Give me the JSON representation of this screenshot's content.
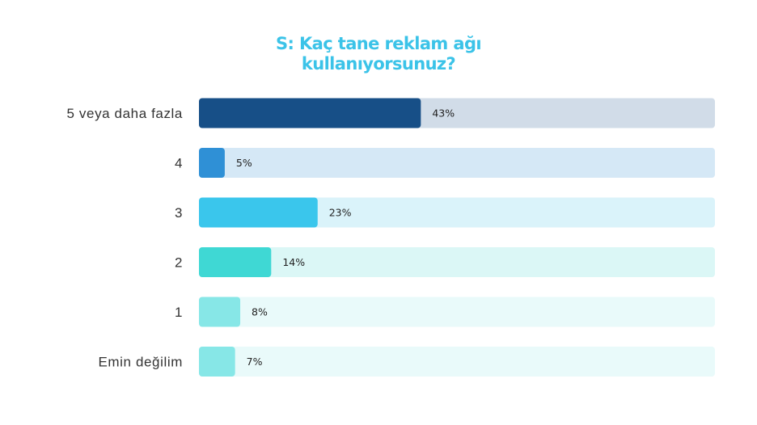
{
  "title_lines": [
    "S: Kaç tane reklam ağı",
    "kullanıyorsunuz?"
  ],
  "title_color": "#3bc3e8",
  "chart_data": {
    "type": "bar",
    "orientation": "horizontal",
    "categories": [
      "5 veya daha fazla",
      "4",
      "3",
      "2",
      "1",
      "Emin değilim"
    ],
    "values": [
      43,
      5,
      23,
      14,
      8,
      7
    ],
    "value_labels": [
      "43%",
      "5%",
      "23%",
      "14%",
      "8%",
      "7%"
    ],
    "xlim": [
      0,
      100
    ],
    "bar_colors": [
      "#174f87",
      "#2f90d6",
      "#3ac6ec",
      "#3fd8d4",
      "#87e7e7",
      "#87e7e7"
    ],
    "track_colors": [
      "#d1dce8",
      "#d5e8f6",
      "#daf3fa",
      "#dbf7f6",
      "#e9fafa",
      "#e9fafa"
    ],
    "grid": false,
    "legend": "none"
  }
}
